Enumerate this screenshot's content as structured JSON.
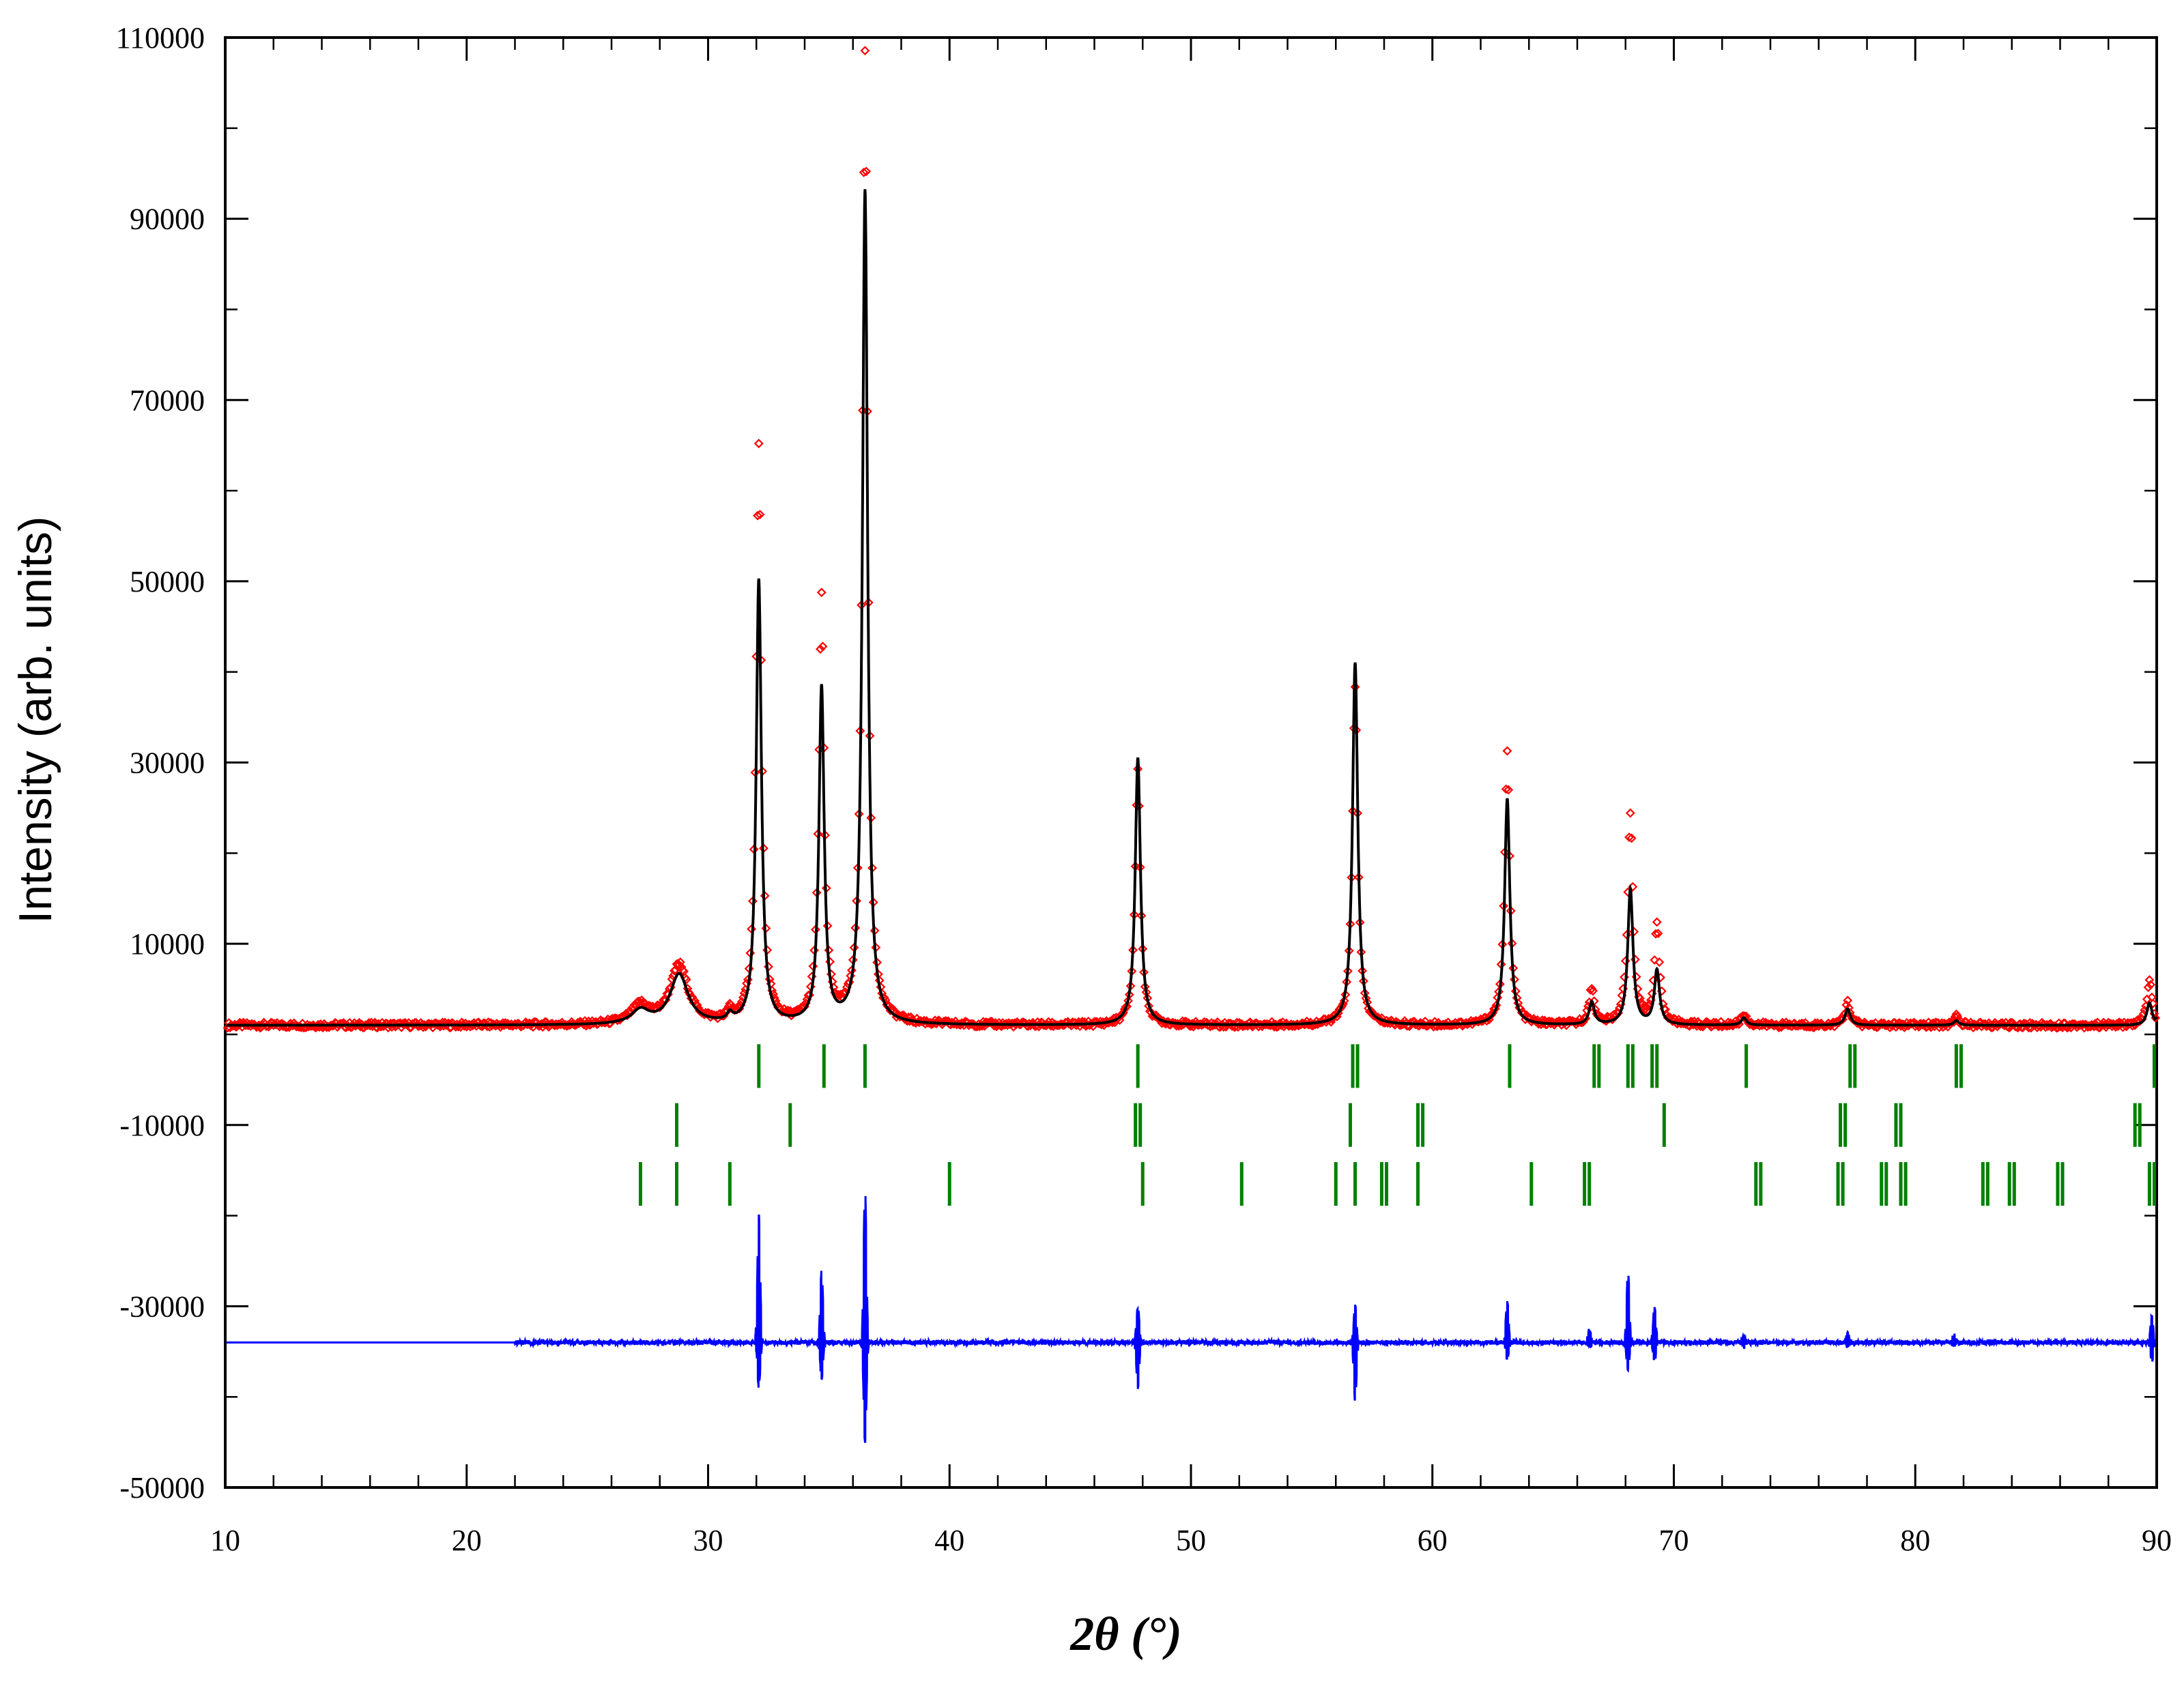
{
  "chart_data": {
    "type": "line",
    "xlabel": "2θ (°)",
    "ylabel": "Intensity (arb. units)",
    "xlim": [
      10,
      90
    ],
    "ylim": [
      -50000,
      110000
    ],
    "x_ticks": [
      10,
      20,
      30,
      40,
      50,
      60,
      70,
      80,
      90
    ],
    "y_ticks": [
      -50000,
      -30000,
      -10000,
      10000,
      30000,
      50000,
      70000,
      90000,
      110000
    ],
    "grid": false,
    "legend": "none",
    "background": 1000,
    "diff_offset": -34000,
    "colors": {
      "observed": "#ff0000",
      "calculated": "#000000",
      "bragg": "#008000",
      "difference": "#0000ff"
    },
    "peaks": [
      {
        "x": 27.2,
        "y": 2500,
        "obs": 3000
      },
      {
        "x": 28.8,
        "y": 6500,
        "obs": 7500
      },
      {
        "x": 30.9,
        "y": 1800,
        "obs": 2000
      },
      {
        "x": 32.1,
        "y": 50000,
        "obs": 65000
      },
      {
        "x": 34.7,
        "y": 38000,
        "obs": 48000
      },
      {
        "x": 36.5,
        "y": 93000,
        "obs": 108500
      },
      {
        "x": 47.8,
        "y": 30500,
        "obs": 29000
      },
      {
        "x": 56.8,
        "y": 41000,
        "obs": 38500
      },
      {
        "x": 63.1,
        "y": 26000,
        "obs": 31000
      },
      {
        "x": 66.6,
        "y": 3500,
        "obs": 5000
      },
      {
        "x": 68.2,
        "y": 16000,
        "obs": 24500
      },
      {
        "x": 69.3,
        "y": 7000,
        "obs": 12000
      },
      {
        "x": 72.9,
        "y": 1800,
        "obs": 2200
      },
      {
        "x": 77.2,
        "y": 2800,
        "obs": 3500
      },
      {
        "x": 81.7,
        "y": 1500,
        "obs": 2000
      },
      {
        "x": 89.7,
        "y": 3500,
        "obs": 6000
      }
    ],
    "bragg_rows": [
      {
        "y_center": -3500,
        "positions": [
          32.1,
          34.8,
          36.5,
          47.8,
          56.7,
          56.9,
          63.2,
          66.7,
          66.9,
          68.1,
          68.3,
          69.1,
          69.3,
          73.0,
          77.3,
          77.5,
          81.7,
          81.9,
          89.9
        ]
      },
      {
        "y_center": -10000,
        "positions": [
          28.7,
          33.4,
          47.7,
          47.9,
          56.6,
          59.4,
          59.6,
          69.6,
          76.9,
          77.1,
          79.2,
          79.4,
          89.1,
          89.3
        ]
      },
      {
        "y_center": -16500,
        "positions": [
          27.2,
          28.7,
          30.9,
          40.0,
          48.0,
          52.1,
          56.0,
          56.8,
          57.9,
          58.1,
          59.4,
          64.1,
          66.3,
          66.5,
          73.4,
          73.6,
          76.8,
          77.0,
          78.6,
          78.8,
          79.4,
          79.6,
          82.8,
          83.0,
          83.9,
          84.1,
          85.9,
          86.1,
          89.7,
          89.9
        ]
      }
    ],
    "difference_spikes": [
      {
        "x": 32.1,
        "up": 14000,
        "down": -5000
      },
      {
        "x": 34.7,
        "up": 8000,
        "down": -4000
      },
      {
        "x": 36.5,
        "up": 17000,
        "down": -11000
      },
      {
        "x": 47.8,
        "up": 4000,
        "down": -5000
      },
      {
        "x": 56.8,
        "up": 4000,
        "down": -6500
      },
      {
        "x": 63.1,
        "up": 4500,
        "down": -2000
      },
      {
        "x": 66.5,
        "up": 1500,
        "down": -500
      },
      {
        "x": 68.1,
        "up": 8000,
        "down": -3000
      },
      {
        "x": 69.2,
        "up": 4000,
        "down": -2000
      },
      {
        "x": 72.9,
        "up": 800,
        "down": -400
      },
      {
        "x": 77.2,
        "up": 1200,
        "down": -500
      },
      {
        "x": 81.6,
        "up": 800,
        "down": -400
      },
      {
        "x": 89.8,
        "up": 3000,
        "down": -2000
      }
    ]
  }
}
